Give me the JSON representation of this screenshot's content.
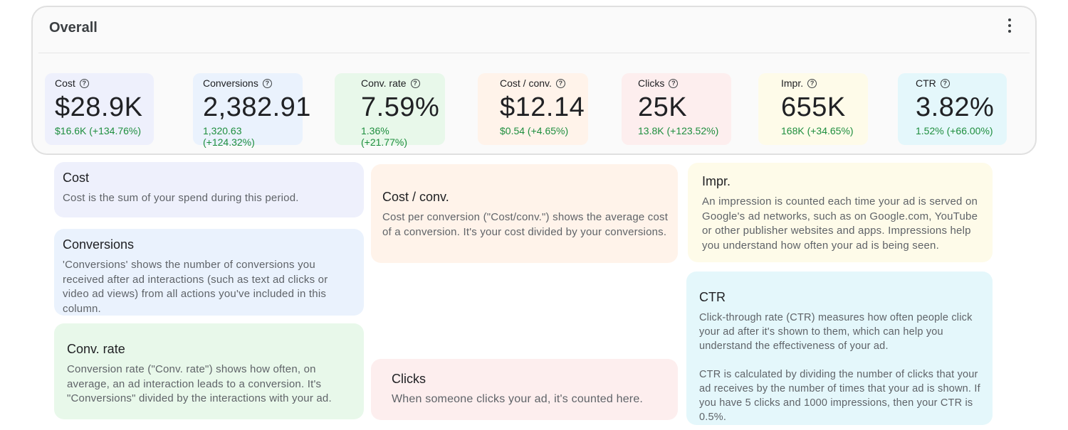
{
  "card": {
    "title": "Overall",
    "more_icon": "more-vert-icon"
  },
  "metrics": [
    {
      "label": "Cost",
      "value": "$28.9K",
      "delta": "$16.6K (+134.76%)",
      "color": "#eef0fc"
    },
    {
      "label": "Conversions",
      "value": "2,382.91",
      "delta": "1,320.63 (+124.32%)",
      "color": "#eaf2fd"
    },
    {
      "label": "Conv. rate",
      "value": "7.59%",
      "delta": "1.36% (+21.77%)",
      "color": "#e8f8ea"
    },
    {
      "label": "Cost / conv.",
      "value": "$12.14",
      "delta": "$0.54 (+4.65%)",
      "color": "#fff3ea"
    },
    {
      "label": "Clicks",
      "value": "25K",
      "delta": "13.8K (+123.52%)",
      "color": "#fdeeee"
    },
    {
      "label": "Impr.",
      "value": "655K",
      "delta": "168K (+34.65%)",
      "color": "#fefbe9"
    },
    {
      "label": "CTR",
      "value": "3.82%",
      "delta": "1.52% (+66.00%)",
      "color": "#e4f7fb"
    }
  ],
  "help_icon": "help-circle-icon",
  "delta_color": "#1e8e3e",
  "tooltips": {
    "cost": {
      "title": "Cost",
      "body": "Cost is the sum of your spend during this period."
    },
    "conversions": {
      "title": "Conversions",
      "body": "'Conversions' shows the number of conversions you received after ad interactions (such as text ad clicks or video ad views) from all actions you've included in this column."
    },
    "conv_rate": {
      "title": "Conv. rate",
      "body": "Conversion rate (\"Conv. rate\") shows how often, on average, an ad interaction leads to a conversion. It's \"Conversions\" divided by the interactions with your ad."
    },
    "cost_conv": {
      "title": "Cost / conv.",
      "body": "Cost per conversion (\"Cost/conv.\") shows the average cost of a conversion. It's your cost divided by your conversions."
    },
    "clicks": {
      "title": "Clicks",
      "body": "When someone clicks your ad, it's counted here."
    },
    "impr": {
      "title": "Impr.",
      "body": "An impression is counted each time your ad is served on Google's ad networks, such as on Google.com, YouTube or other publisher websites and apps. Impressions help you understand how often your ad is being seen."
    },
    "ctr": {
      "title": "CTR",
      "body1": "Click-through rate (CTR) measures how often people click your ad after it's shown to them, which can help you understand the effectiveness of your ad.",
      "body2": "CTR is calculated by dividing the number of clicks that your ad receives by the number of times that your ad is shown. If you have 5 clicks and 1000 impressions, then your CTR is 0.5%."
    }
  }
}
